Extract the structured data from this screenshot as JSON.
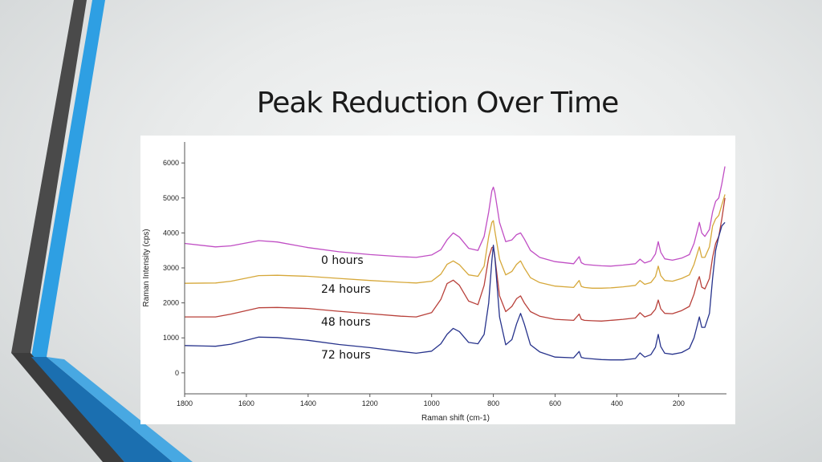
{
  "slide": {
    "title": "Peak Reduction Over Time"
  },
  "colors": {
    "accent_blue": "#2e9fe3",
    "accent_dark": "#4a4a4a",
    "accent_deep_blue": "#1b6fb0"
  },
  "chart_data": {
    "type": "line",
    "title": "",
    "xlabel": "Raman shift (cm-1)",
    "ylabel": "Raman Intensity (cps)",
    "xlim": [
      1800,
      45
    ],
    "ylim": [
      -600,
      6600
    ],
    "x_reversed": true,
    "x_ticks": [
      1800,
      1600,
      1400,
      1200,
      1000,
      800,
      600,
      400,
      200
    ],
    "y_ticks": [
      0,
      1000,
      2000,
      3000,
      4000,
      5000,
      6000
    ],
    "grid": false,
    "legend": "none",
    "x": [
      1800,
      1700,
      1650,
      1560,
      1500,
      1400,
      1300,
      1200,
      1100,
      1050,
      1000,
      970,
      950,
      930,
      910,
      880,
      850,
      830,
      815,
      805,
      800,
      795,
      780,
      760,
      740,
      725,
      712,
      700,
      680,
      650,
      600,
      540,
      522,
      515,
      505,
      480,
      450,
      420,
      380,
      340,
      325,
      310,
      290,
      275,
      266,
      258,
      245,
      220,
      190,
      165,
      150,
      140,
      133,
      125,
      115,
      100,
      90,
      80,
      70,
      60,
      50
    ],
    "series": [
      {
        "name": "0 hours",
        "color": "#c04ec4",
        "values": [
          3700,
          3600,
          3630,
          3780,
          3740,
          3580,
          3460,
          3380,
          3320,
          3300,
          3370,
          3520,
          3800,
          4000,
          3880,
          3560,
          3500,
          3900,
          4600,
          5200,
          5310,
          5150,
          4300,
          3750,
          3800,
          3950,
          4000,
          3830,
          3500,
          3300,
          3180,
          3120,
          3320,
          3150,
          3100,
          3080,
          3060,
          3050,
          3080,
          3120,
          3250,
          3140,
          3200,
          3400,
          3750,
          3450,
          3260,
          3220,
          3280,
          3380,
          3700,
          4050,
          4300,
          4000,
          3900,
          4100,
          4600,
          4900,
          5000,
          5400,
          5900
        ]
      },
      {
        "name": "24 hours",
        "color": "#d6a83a",
        "values": [
          2560,
          2570,
          2620,
          2780,
          2790,
          2760,
          2700,
          2640,
          2590,
          2570,
          2620,
          2820,
          3100,
          3200,
          3090,
          2800,
          2760,
          3050,
          3900,
          4300,
          4350,
          4050,
          3250,
          2800,
          2900,
          3100,
          3200,
          3000,
          2720,
          2580,
          2480,
          2440,
          2640,
          2470,
          2440,
          2420,
          2420,
          2430,
          2460,
          2500,
          2640,
          2530,
          2580,
          2750,
          3050,
          2780,
          2640,
          2620,
          2700,
          2800,
          3100,
          3400,
          3600,
          3300,
          3300,
          3600,
          4200,
          4400,
          4500,
          4800,
          5100
        ]
      },
      {
        "name": "48 hours",
        "color": "#b8403a",
        "values": [
          1600,
          1600,
          1680,
          1860,
          1870,
          1840,
          1760,
          1690,
          1620,
          1600,
          1720,
          2100,
          2550,
          2650,
          2500,
          2050,
          1950,
          2500,
          3300,
          3580,
          3600,
          3300,
          2200,
          1750,
          1900,
          2120,
          2200,
          2000,
          1750,
          1620,
          1530,
          1500,
          1680,
          1530,
          1500,
          1490,
          1480,
          1500,
          1530,
          1570,
          1720,
          1600,
          1660,
          1820,
          2080,
          1830,
          1700,
          1690,
          1780,
          1900,
          2250,
          2600,
          2750,
          2450,
          2400,
          2700,
          3300,
          3700,
          3900,
          4400,
          5000
        ]
      },
      {
        "name": "72 hours",
        "color": "#27338c",
        "values": [
          780,
          760,
          820,
          1020,
          1010,
          930,
          810,
          720,
          610,
          560,
          620,
          830,
          1100,
          1270,
          1180,
          870,
          830,
          1100,
          2000,
          3200,
          3650,
          3300,
          1600,
          800,
          950,
          1400,
          1700,
          1400,
          800,
          600,
          450,
          430,
          610,
          440,
          420,
          400,
          380,
          370,
          370,
          410,
          570,
          450,
          520,
          730,
          1100,
          750,
          560,
          530,
          580,
          700,
          1000,
          1350,
          1600,
          1300,
          1300,
          1700,
          2700,
          3500,
          3900,
          4200,
          4300
        ]
      }
    ]
  }
}
